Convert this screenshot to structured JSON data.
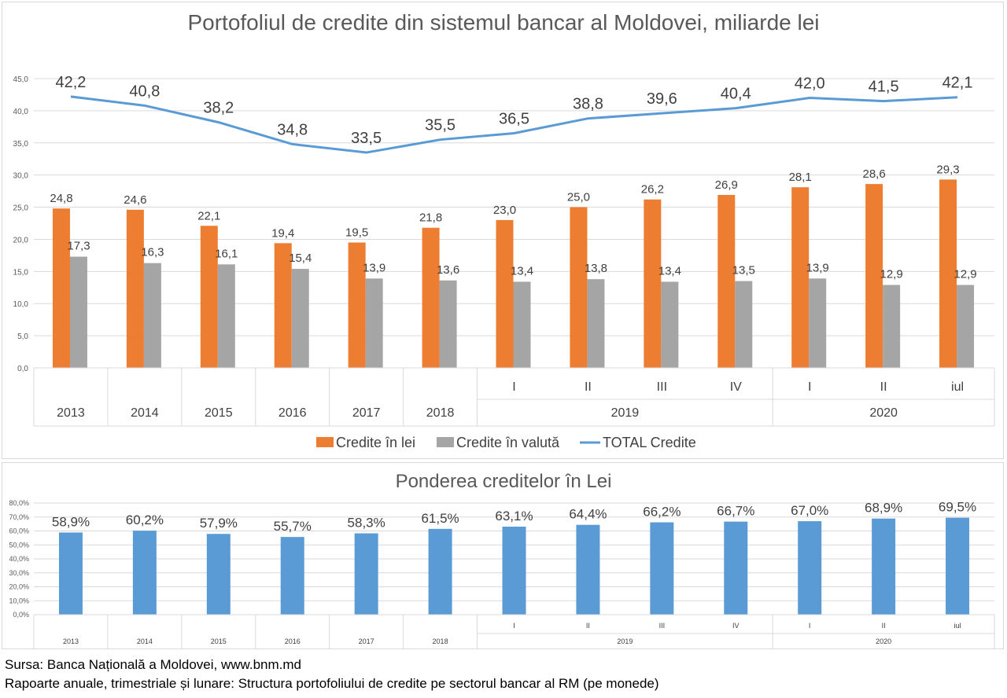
{
  "colors": {
    "lei": "#ed7d31",
    "valuta": "#a5a5a5",
    "total": "#5b9bd5",
    "share": "#5b9bd5",
    "grid": "#d9d9d9",
    "text": "#595959"
  },
  "chart_data": [
    {
      "type": "bar",
      "title": "Portofoliul de credite din sistemul bancar al Moldovei, miliarde lei",
      "categories": [
        "2013",
        "2014",
        "2015",
        "2016",
        "2017",
        "2018",
        "I",
        "II",
        "III",
        "IV",
        "I",
        "II",
        "iul"
      ],
      "category_groups": [
        {
          "label": "2019",
          "members": [
            "I",
            "II",
            "III",
            "IV"
          ]
        },
        {
          "label": "2020",
          "members": [
            "I",
            "II",
            "iul"
          ]
        }
      ],
      "series": [
        {
          "name": "Credite în lei",
          "type": "bar",
          "values": [
            24.8,
            24.6,
            22.1,
            19.4,
            19.5,
            21.8,
            23.0,
            25.0,
            26.2,
            26.9,
            28.1,
            28.6,
            29.3
          ],
          "labels": [
            "24,8",
            "24,6",
            "22,1",
            "19,4",
            "19,5",
            "21,8",
            "23,0",
            "25,0",
            "26,2",
            "26,9",
            "28,1",
            "28,6",
            "29,3"
          ]
        },
        {
          "name": "Credite în valută",
          "type": "bar",
          "values": [
            17.3,
            16.3,
            16.1,
            15.4,
            13.9,
            13.6,
            13.4,
            13.8,
            13.4,
            13.5,
            13.9,
            12.9,
            12.9
          ],
          "labels": [
            "17,3",
            "16,3",
            "16,1",
            "15,4",
            "13,9",
            "13,6",
            "13,4",
            "13,8",
            "13,4",
            "13,5",
            "13,9",
            "12,9",
            "12,9"
          ]
        },
        {
          "name": "TOTAL Credite",
          "type": "line",
          "values": [
            42.2,
            40.8,
            38.2,
            34.8,
            33.5,
            35.5,
            36.5,
            38.8,
            39.6,
            40.4,
            42.0,
            41.5,
            42.1
          ],
          "labels": [
            "42,2",
            "40,8",
            "38,2",
            "34,8",
            "33,5",
            "35,5",
            "36,5",
            "38,8",
            "39,6",
            "40,4",
            "42,0",
            "41,5",
            "42,1"
          ]
        }
      ],
      "ylim": [
        0,
        45
      ],
      "yticks": [
        "0,0",
        "5,0",
        "10,0",
        "15,0",
        "20,0",
        "25,0",
        "30,0",
        "35,0",
        "40,0",
        "45,0"
      ],
      "grid": true,
      "legend_position": "bottom"
    },
    {
      "type": "bar",
      "title": "Ponderea creditelor în Lei",
      "categories": [
        "2013",
        "2014",
        "2015",
        "2016",
        "2017",
        "2018",
        "I",
        "II",
        "III",
        "IV",
        "I",
        "II",
        "iul"
      ],
      "category_groups": [
        {
          "label": "2019",
          "members": [
            "I",
            "II",
            "III",
            "IV"
          ]
        },
        {
          "label": "2020",
          "members": [
            "I",
            "II",
            "iul"
          ]
        }
      ],
      "series": [
        {
          "type": "bar",
          "values": [
            58.9,
            60.2,
            57.9,
            55.7,
            58.3,
            61.5,
            63.1,
            64.4,
            66.2,
            66.7,
            67.0,
            68.9,
            69.5
          ],
          "labels": [
            "58,9%",
            "60,2%",
            "57,9%",
            "55,7%",
            "58,3%",
            "61,5%",
            "63,1%",
            "64,4%",
            "66,2%",
            "66,7%",
            "67,0%",
            "68,9%",
            "69,5%"
          ]
        }
      ],
      "ylim": [
        0,
        80
      ],
      "yticks": [
        "0,0%",
        "10,0%",
        "20,0%",
        "30,0%",
        "40,0%",
        "50,0%",
        "60,0%",
        "70,0%",
        "80,0%"
      ],
      "grid": true
    }
  ],
  "source": {
    "line1": "Sursa: Banca Națională a Moldovei, www.bnm.md",
    "line2": "Rapoarte anuale, trimestriale și lunare: Structura portofoliului de credite pe sectorul bancar al RM (pe monede)"
  }
}
